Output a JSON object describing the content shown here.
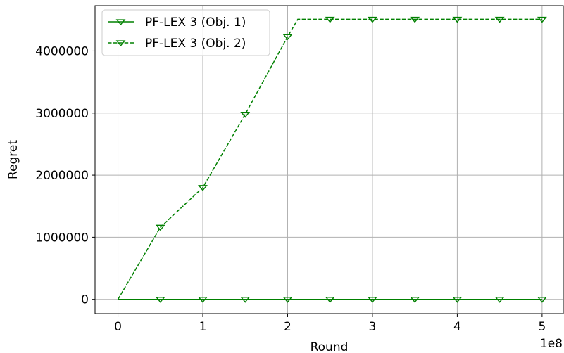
{
  "chart_data": {
    "type": "line",
    "xlabel": "Round",
    "ylabel": "Regret",
    "x_offset_label": "1e8",
    "xlim": [
      -0.27,
      5.25
    ],
    "ylim": [
      -230000,
      4730000
    ],
    "grid": true,
    "legend_position": "top-left",
    "x_ticks": [
      0,
      1,
      2,
      3,
      4,
      5
    ],
    "x_tick_labels": [
      "0",
      "1",
      "2",
      "3",
      "4",
      "5"
    ],
    "y_ticks": [
      0,
      1000000,
      2000000,
      3000000,
      4000000
    ],
    "y_tick_labels": [
      "0",
      "1000000",
      "2000000",
      "3000000",
      "4000000"
    ],
    "series": [
      {
        "name": "PF-LEX 3 (Obj. 1)",
        "color": "#008000",
        "line_style": "solid",
        "marker": "triangle-down",
        "x": [
          0,
          0.5,
          1.0,
          1.5,
          2.0,
          2.5,
          3.0,
          3.5,
          4.0,
          4.5,
          5.0
        ],
        "y": [
          0,
          0,
          0,
          0,
          0,
          0,
          0,
          0,
          0,
          0,
          0
        ],
        "marker_x": [
          0.5,
          1.0,
          1.5,
          2.0,
          2.5,
          3.0,
          3.5,
          4.0,
          4.5,
          5.0
        ]
      },
      {
        "name": "PF-LEX 3 (Obj. 2)",
        "color": "#008000",
        "line_style": "dashed",
        "marker": "triangle-down",
        "x": [
          0,
          0.5,
          1.0,
          1.5,
          2.0,
          2.12,
          2.5,
          3.0,
          3.5,
          4.0,
          4.5,
          5.0
        ],
        "y": [
          0,
          1160000,
          1800000,
          2980000,
          4230000,
          4510000,
          4510000,
          4510000,
          4510000,
          4510000,
          4510000,
          4510000
        ],
        "marker_x": [
          0.5,
          1.0,
          1.5,
          2.0,
          2.5,
          3.0,
          3.5,
          4.0,
          4.5,
          5.0
        ]
      }
    ]
  }
}
